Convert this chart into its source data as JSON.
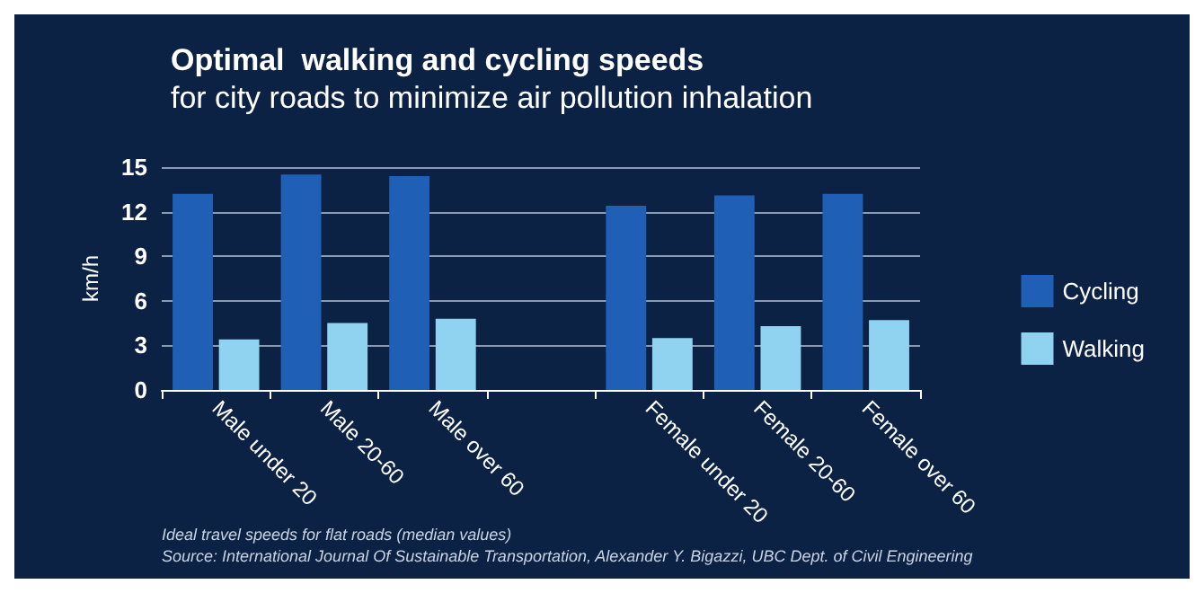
{
  "chart_data": {
    "type": "bar",
    "title": "Optimal  walking and cycling speeds",
    "subtitle": "for city roads to minimize air pollution inhalation",
    "ylabel": "km/h",
    "categories": [
      "Male under 20",
      "Male 20-60",
      "Male over 60",
      null,
      "Female under 20",
      "Female 20-60",
      "Female over 60"
    ],
    "series": [
      {
        "name": "Cycling",
        "color": "#1f5fb5",
        "values": [
          13.2,
          14.5,
          14.4,
          null,
          12.4,
          13.1,
          13.2
        ]
      },
      {
        "name": "Walking",
        "color": "#8fd3f0",
        "values": [
          3.4,
          4.5,
          4.8,
          null,
          3.5,
          4.3,
          4.7
        ]
      }
    ],
    "ylim": [
      0,
      15
    ],
    "yticks": [
      0,
      3,
      6,
      9,
      12,
      15
    ],
    "grid": "y",
    "legend": "right",
    "annotations": [
      "Ideal travel speeds for flat roads (median values)",
      "Source: International Journal Of Sustainable Transportation, Alexander Y. Bigazzi, UBC Dept. of Civil Engineering"
    ]
  }
}
